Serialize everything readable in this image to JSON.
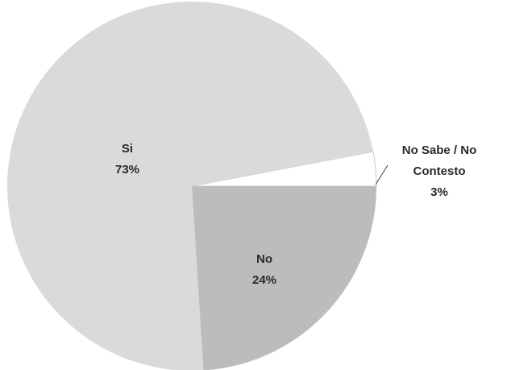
{
  "chart_data": {
    "type": "pie",
    "categories": [
      "No",
      "Si",
      "No Sabe / No Contesto"
    ],
    "values": [
      24,
      73,
      3
    ],
    "value_labels": [
      "24%",
      "73%",
      "3%"
    ],
    "colors": [
      "#bcbcbc",
      "#dadada",
      "#ffffff"
    ]
  }
}
